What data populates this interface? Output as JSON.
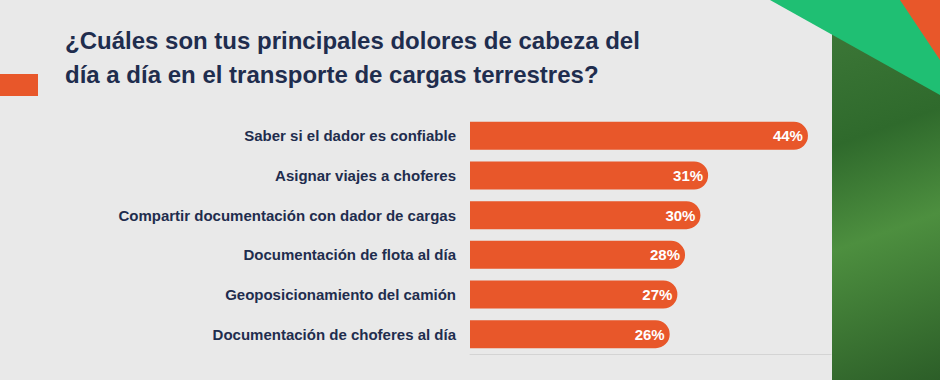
{
  "chart_data": {
    "type": "bar",
    "orientation": "horizontal",
    "title": "¿Cuáles son tus principales dolores de cabeza del día a día en el transporte de cargas terrestres?",
    "categories": [
      "Saber si el dador es confiable",
      "Asignar viajes a choferes",
      "Compartir documentación con dador de cargas",
      "Documentación de flota al día",
      "Geoposicionamiento del camión",
      "Documentación de choferes al día"
    ],
    "values": [
      44,
      31,
      30,
      28,
      27,
      26
    ],
    "value_labels": [
      "44%",
      "31%",
      "30%",
      "28%",
      "27%",
      "26%"
    ],
    "color": "#e8572a",
    "xlim": [
      0,
      47
    ],
    "data_labels": true,
    "tick_labels": "y",
    "grid": false
  }
}
